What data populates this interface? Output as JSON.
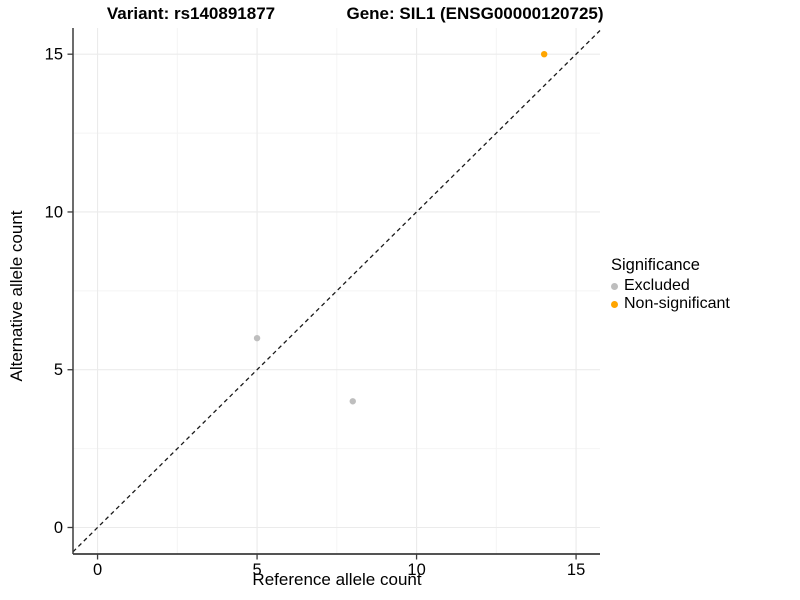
{
  "title": {
    "variant": "Variant: rs140891877",
    "gene": "Gene: SIL1 (ENSG00000120725)"
  },
  "chart_data": {
    "type": "scatter",
    "xlabel": "Reference allele count",
    "ylabel": "Alternative allele count",
    "xlim": [
      -0.77,
      15.75
    ],
    "ylim": [
      -0.84,
      15.83
    ],
    "x_ticks": [
      0,
      5,
      10,
      15
    ],
    "y_ticks": [
      0,
      5,
      10,
      15
    ],
    "x_minor_ticks": [
      2.5,
      7.5,
      12.5
    ],
    "y_minor_ticks": [
      2.5,
      7.5,
      12.5
    ],
    "grid": true,
    "series": [
      {
        "name": "Excluded",
        "color": "#BEBEBE",
        "points": [
          [
            5,
            6
          ],
          [
            8,
            4
          ]
        ]
      },
      {
        "name": "Non-significant",
        "color": "#FFA500",
        "points": [
          [
            14,
            15
          ]
        ]
      }
    ],
    "reference_line": {
      "type": "identity",
      "style": "dashed",
      "color": "#1a1a1a"
    },
    "legend": {
      "title": "Significance",
      "position": "right"
    }
  }
}
